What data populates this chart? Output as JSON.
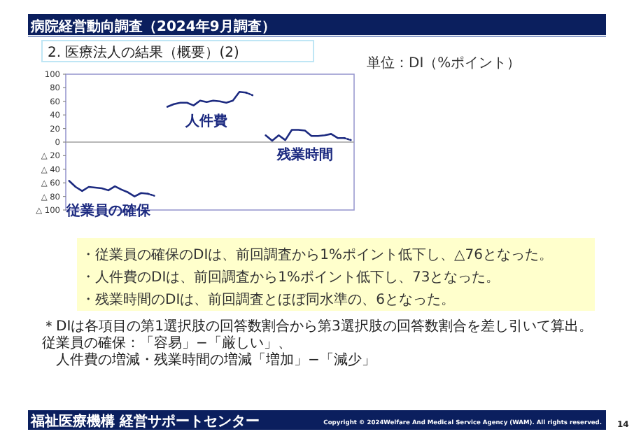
{
  "chart_data": {
    "type": "line",
    "title": "病院経営動向調査（2024年9月調査）",
    "subtitle": "2. 医療法人の結果（概要）(2)",
    "categories": [
      null,
      null,
      null,
      null,
      null,
      null,
      null,
      null,
      null,
      null,
      null,
      null,
      null,
      null,
      null,
      null,
      null,
      null,
      null,
      null,
      null,
      null,
      null,
      null,
      null,
      null,
      null,
      null,
      null,
      null,
      null,
      null,
      null,
      null,
      null,
      null,
      null,
      null,
      null,
      null,
      null,
      null,
      null,
      null
    ],
    "series": [
      {
        "name": "従業員の確保",
        "color": "#1c2a80",
        "values": [
          -57,
          -66,
          -72,
          -66,
          -67,
          -68,
          -71,
          -65,
          -70,
          -74,
          -80,
          -75,
          -76,
          null,
          null,
          null,
          null,
          null,
          null,
          null,
          null,
          null,
          null,
          null,
          null,
          null,
          null,
          null,
          null,
          null,
          null,
          null,
          null,
          null,
          null,
          null,
          null,
          null,
          null,
          null,
          null,
          null,
          null,
          null
        ]
      },
      {
        "color": "#1c2a80",
        "line_style": "dotted",
        "values": [
          null,
          null,
          null,
          null,
          null,
          null,
          null,
          null,
          null,
          null,
          null,
          null,
          -76,
          -79,
          null,
          null,
          null,
          null,
          null,
          null,
          null,
          null,
          null,
          null,
          null,
          null,
          null,
          null,
          null,
          null,
          null,
          null,
          null,
          null,
          null,
          null,
          null,
          null,
          null,
          null,
          null,
          null,
          null,
          null
        ]
      },
      {
        "name": "人件費",
        "color": "#1c2a80",
        "values": [
          null,
          null,
          null,
          null,
          null,
          null,
          null,
          null,
          null,
          null,
          null,
          null,
          null,
          null,
          null,
          52,
          56,
          58,
          58,
          54,
          61,
          59,
          61,
          60,
          58,
          61,
          74,
          73,
          null,
          null,
          null,
          null,
          null,
          null,
          null,
          null,
          null,
          null,
          null,
          null,
          null,
          null,
          null,
          null
        ]
      },
      {
        "color": "#1c2a80",
        "line_style": "dotted",
        "values": [
          null,
          null,
          null,
          null,
          null,
          null,
          null,
          null,
          null,
          null,
          null,
          null,
          null,
          null,
          null,
          null,
          null,
          null,
          null,
          null,
          null,
          null,
          null,
          null,
          null,
          null,
          null,
          73,
          69,
          null,
          null,
          null,
          null,
          null,
          null,
          null,
          null,
          null,
          null,
          null,
          null,
          null,
          null,
          null
        ]
      },
      {
        "name": "残業時間",
        "color": "#1c2a80",
        "values": [
          null,
          null,
          null,
          null,
          null,
          null,
          null,
          null,
          null,
          null,
          null,
          null,
          null,
          null,
          null,
          null,
          null,
          null,
          null,
          null,
          null,
          null,
          null,
          null,
          null,
          null,
          null,
          null,
          null,
          null,
          10,
          2,
          10,
          3,
          18,
          18,
          17,
          9,
          9,
          10,
          12,
          6,
          6,
          null
        ]
      },
      {
        "color": "#1c2a80",
        "line_style": "dotted",
        "values": [
          null,
          null,
          null,
          null,
          null,
          null,
          null,
          null,
          null,
          null,
          null,
          null,
          null,
          null,
          null,
          null,
          null,
          null,
          null,
          null,
          null,
          null,
          null,
          null,
          null,
          null,
          null,
          null,
          null,
          null,
          null,
          null,
          null,
          null,
          null,
          null,
          null,
          null,
          null,
          null,
          null,
          null,
          6,
          3
        ]
      }
    ],
    "ylim": [
      -100,
      100
    ],
    "yticks": [
      {
        "value": -100,
        "label": "△ 100"
      },
      {
        "value": -80,
        "label": "△ 80"
      },
      {
        "value": -60,
        "label": "△ 60"
      },
      {
        "value": -40,
        "label": "△ 40"
      },
      {
        "value": -20,
        "label": "△ 20"
      },
      0,
      20,
      40,
      60,
      80,
      100
    ],
    "ref_lines": [
      {
        "axis": "y",
        "value": 0,
        "color": "#a0a0a0"
      }
    ],
    "annotations": [
      "単位：DI（%ポイント）",
      "・従業員の確保のDIは、前回調査から1%ポイント低下し、△76となった。",
      "・人件費のDIは、前回調査から1%ポイント低下し、73となった。",
      "・残業時間のDIは、前回調査とほぼ同水準の、6となった。",
      "＊DIは各項目の第1選択肢の回答数割合から第3選択肢の回答数割合を差し引いて算出。従業員の確保：「容易」−「厳しい」、",
      "人件費の増減・残業時間の増減「増加」−「減少」",
      "福祉医療機構 経営サポートセンター",
      "Copyright © 2024Welfare And Medical Service Agency (WAM). All rights reserved.",
      "14"
    ]
  }
}
